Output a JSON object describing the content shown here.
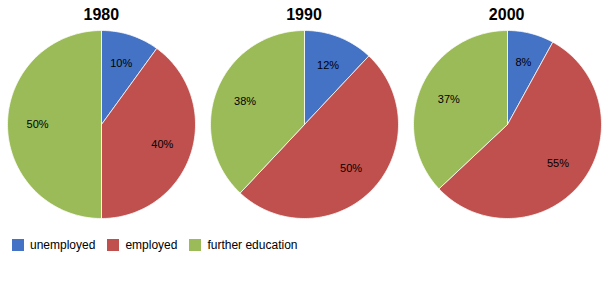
{
  "chart_data": [
    {
      "type": "pie",
      "title": "1980",
      "categories": [
        "unemployed",
        "employed",
        "further education"
      ],
      "values": [
        10,
        40,
        50
      ],
      "value_labels": [
        "10%",
        "40%",
        "50%"
      ],
      "colors": [
        "#4472c4",
        "#c0504d",
        "#9bbb59"
      ],
      "data_labels": true,
      "legend": "lower left"
    },
    {
      "type": "pie",
      "title": "1990",
      "categories": [
        "unemployed",
        "employed",
        "further education"
      ],
      "values": [
        12,
        50,
        38
      ],
      "value_labels": [
        "12%",
        "50%",
        "38%"
      ],
      "colors": [
        "#4472c4",
        "#c0504d",
        "#9bbb59"
      ],
      "data_labels": true,
      "legend": "lower left"
    },
    {
      "type": "pie",
      "title": "2000",
      "categories": [
        "unemployed",
        "employed",
        "further education"
      ],
      "values": [
        8,
        55,
        37
      ],
      "value_labels": [
        "8%",
        "55%",
        "37%"
      ],
      "colors": [
        "#4472c4",
        "#c0504d",
        "#9bbb59"
      ],
      "data_labels": true,
      "legend": "lower left"
    }
  ]
}
